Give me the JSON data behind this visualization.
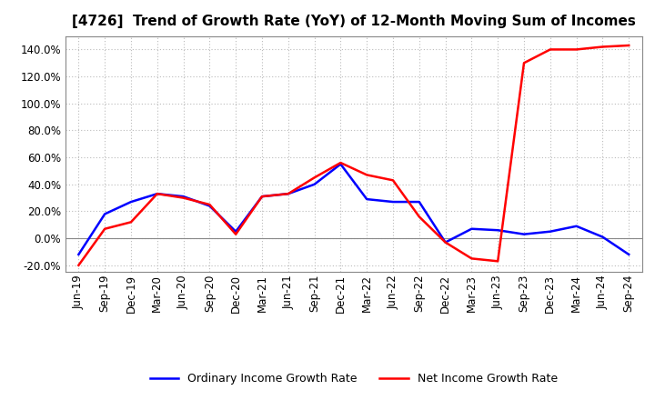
{
  "title": "[4726]  Trend of Growth Rate (YoY) of 12-Month Moving Sum of Incomes",
  "x_labels": [
    "Jun-19",
    "Sep-19",
    "Dec-19",
    "Mar-20",
    "Jun-20",
    "Sep-20",
    "Dec-20",
    "Mar-21",
    "Jun-21",
    "Sep-21",
    "Dec-21",
    "Mar-22",
    "Jun-22",
    "Sep-22",
    "Dec-22",
    "Mar-23",
    "Jun-23",
    "Sep-23",
    "Dec-23",
    "Mar-24",
    "Jun-24",
    "Sep-24"
  ],
  "ordinary_income": [
    -0.12,
    0.18,
    0.27,
    0.33,
    0.31,
    0.24,
    0.05,
    0.31,
    0.33,
    0.4,
    0.55,
    0.29,
    0.27,
    0.27,
    -0.03,
    0.07,
    0.06,
    0.03,
    0.05,
    0.09,
    0.01,
    -0.12
  ],
  "net_income": [
    -0.2,
    0.07,
    0.12,
    0.33,
    0.3,
    0.25,
    0.03,
    0.31,
    0.33,
    0.45,
    0.56,
    0.47,
    0.43,
    0.16,
    -0.03,
    -0.15,
    -0.17,
    1.3,
    1.4,
    1.4,
    1.42,
    1.43
  ],
  "ordinary_color": "#0000ff",
  "net_color": "#ff0000",
  "ylim_min": -0.25,
  "ylim_max": 1.5,
  "yticks": [
    -0.2,
    0.0,
    0.2,
    0.4,
    0.6,
    0.8,
    1.0,
    1.2,
    1.4
  ],
  "bg_color": "#ffffff",
  "plot_bg_color": "#ffffff",
  "grid_color": "#bbbbbb",
  "legend_ordinary": "Ordinary Income Growth Rate",
  "legend_net": "Net Income Growth Rate",
  "title_fontsize": 11,
  "tick_fontsize": 8.5,
  "legend_fontsize": 9
}
